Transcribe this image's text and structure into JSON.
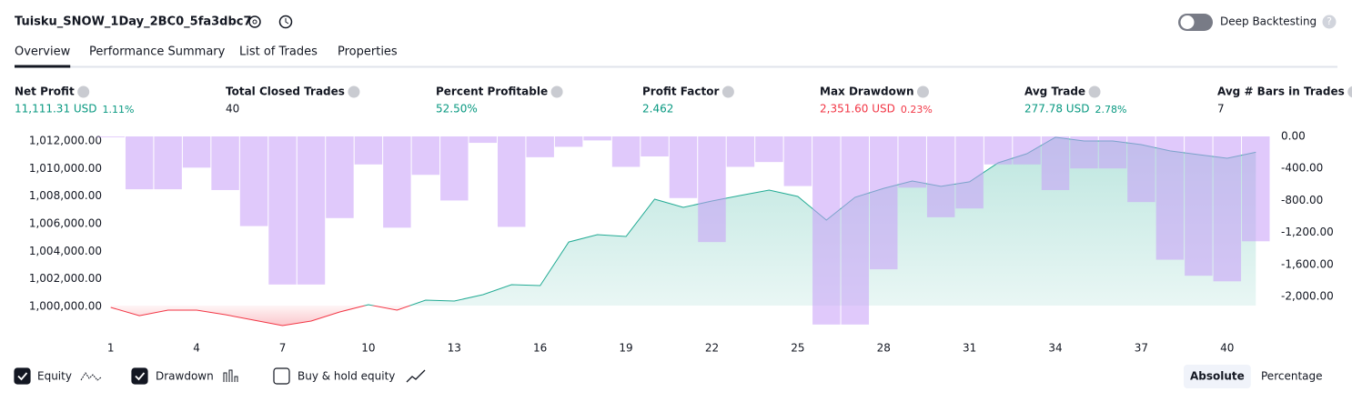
{
  "header": {
    "title": "Tuisku_SNOW_1Day_2BC0_5fa3dbc7",
    "toggle_label": "Deep Backtesting",
    "help": "?"
  },
  "tabs": {
    "items": [
      "Overview",
      "Performance Summary",
      "List of Trades",
      "Properties"
    ],
    "active": 0
  },
  "metrics": [
    {
      "label": "Net Profit",
      "value": "11,111.31 USD",
      "percent": "1.11%",
      "color": "#089981"
    },
    {
      "label": "Total Closed Trades",
      "value": "40",
      "color": "#131722"
    },
    {
      "label": "Percent Profitable",
      "value": "52.50%",
      "color": "#089981"
    },
    {
      "label": "Profit Factor",
      "value": "2.462",
      "color": "#089981"
    },
    {
      "label": "Max Drawdown",
      "value": "2,351.60 USD",
      "percent": "0.23%",
      "color": "#f23645"
    },
    {
      "label": "Avg Trade",
      "value": "277.78 USD",
      "percent": "2.78%",
      "color": "#089981"
    },
    {
      "label": "Avg # Bars in Trades",
      "value": "7",
      "color": "#131722"
    }
  ],
  "chart_data": {
    "type": "combo",
    "x": [
      1,
      2,
      3,
      4,
      5,
      6,
      7,
      8,
      9,
      10,
      11,
      12,
      13,
      14,
      15,
      16,
      17,
      18,
      19,
      20,
      21,
      22,
      23,
      24,
      25,
      26,
      27,
      28,
      29,
      30,
      31,
      32,
      33,
      34,
      35,
      36,
      37,
      38,
      39,
      40,
      41
    ],
    "xlim": [
      0.5,
      41.5
    ],
    "xticks": [
      1,
      4,
      7,
      10,
      13,
      16,
      19,
      22,
      25,
      28,
      31,
      34,
      37,
      40
    ],
    "series": [
      {
        "name": "Equity",
        "type": "line",
        "color": "#22ab94",
        "negative_color": "#f23645",
        "values": [
          999870,
          999270,
          999670,
          999670,
          999340,
          998950,
          998550,
          998880,
          999540,
          1000070,
          999670,
          1000400,
          1000330,
          1000790,
          1001520,
          1001450,
          1004610,
          1005140,
          1005010,
          1007710,
          1007120,
          1007580,
          1007980,
          1008370,
          1007910,
          1006200,
          1007850,
          1008500,
          1009030,
          1008640,
          1008970,
          1010350,
          1011010,
          1012200,
          1011930,
          1011930,
          1011670,
          1011210,
          1010940,
          1010680,
          1011111
        ]
      },
      {
        "name": "Drawdown",
        "type": "bar",
        "axis": "y2",
        "color": "#c69cf7",
        "values": [
          -10,
          -660,
          -660,
          -390,
          -670,
          -1120,
          -1850,
          -1850,
          -1020,
          -350,
          -1140,
          -480,
          -800,
          -80,
          -1130,
          -260,
          -130,
          -50,
          -380,
          -250,
          -770,
          -1320,
          -380,
          -320,
          -620,
          -2350,
          -2350,
          -1660,
          -640,
          -1010,
          -900,
          -350,
          -350,
          -670,
          -400,
          -400,
          -820,
          -1540,
          -1740,
          -1810,
          -1310
        ]
      }
    ],
    "ylim": [
      998420,
      1012260
    ],
    "yticks": [
      {
        "value": 1000000,
        "label": "1,000,000.00"
      },
      {
        "value": 1002000,
        "label": "1,002,000.00"
      },
      {
        "value": 1004000,
        "label": "1,004,000.00"
      },
      {
        "value": 1006000,
        "label": "1,006,000.00"
      },
      {
        "value": 1008000,
        "label": "1,008,000.00"
      },
      {
        "value": 1010000,
        "label": "1,010,000.00"
      },
      {
        "value": 1012000,
        "label": "1,012,000.00"
      }
    ],
    "y2lim": [
      -2386,
      0
    ],
    "y2ticks": [
      {
        "value": 0,
        "label": "0.00"
      },
      {
        "value": -400,
        "label": "-400.00"
      },
      {
        "value": -800,
        "label": "-800.00"
      },
      {
        "value": -1200,
        "label": "-1,200.00"
      },
      {
        "value": -1600,
        "label": "-1,600.00"
      },
      {
        "value": -2000,
        "label": "-2,000.00"
      }
    ]
  },
  "footer": {
    "unchecked": "Buy & hold equity",
    "modes": [
      "Absolute",
      "Percentage"
    ],
    "active_mode": 0
  }
}
